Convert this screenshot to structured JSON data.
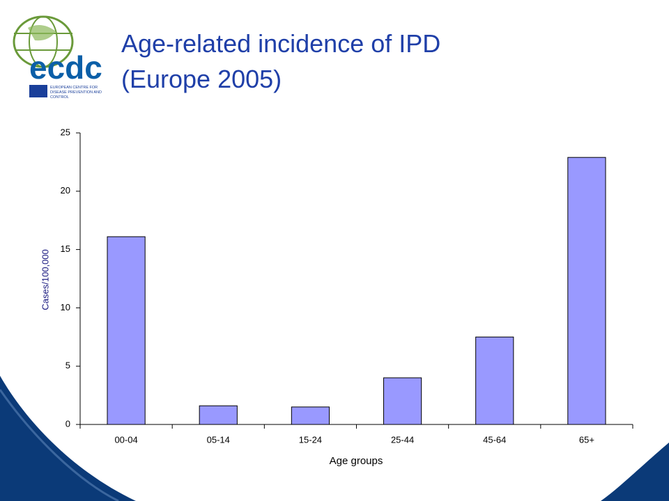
{
  "logo": {
    "name": "ecdc",
    "lines": [
      "EUROPEAN CENTRE FOR",
      "DISEASE PREVENTION AND",
      "CONTROL"
    ]
  },
  "chart_data": {
    "type": "bar",
    "title": [
      "Age-related incidence of IPD",
      "(Europe 2005)"
    ],
    "x_label": "Age groups",
    "y_label": "Cases/100,000",
    "categories": [
      "00-04",
      "05-14",
      "15-24",
      "25-44",
      "45-64",
      "65+"
    ],
    "values": [
      16.1,
      1.6,
      1.5,
      4.0,
      7.5,
      22.9
    ],
    "color": "#9999ff",
    "ylim": [
      0,
      25
    ],
    "yticks": [
      0,
      5,
      10,
      15,
      20,
      25
    ],
    "grid": false
  }
}
